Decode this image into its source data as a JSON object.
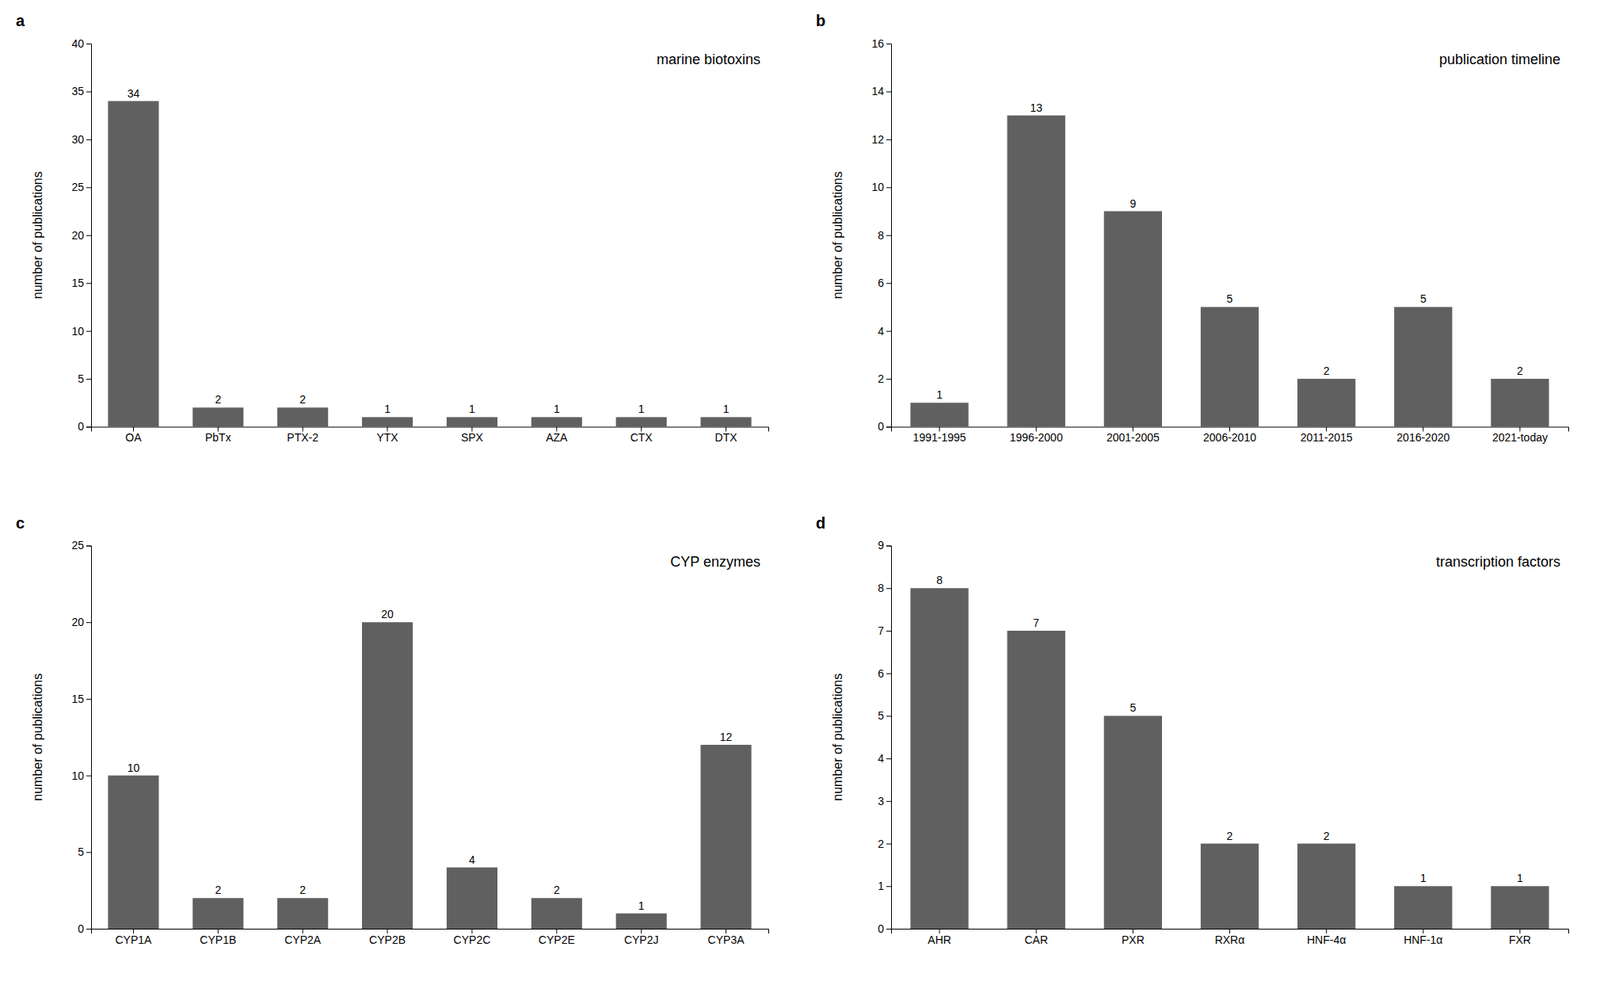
{
  "chart_data": [
    {
      "type": "bar",
      "title": "a",
      "annotation": "marine biotoxins",
      "categories": [
        "OA",
        "PbTx",
        "PTX-2",
        "YTX",
        "SPX",
        "AZA",
        "CTX",
        "DTX"
      ],
      "values": [
        34,
        2,
        2,
        1,
        1,
        1,
        1,
        1
      ],
      "color": "#606060",
      "ylim": [
        0,
        40
      ],
      "yticks": [
        0,
        5,
        10,
        15,
        20,
        25,
        30,
        35,
        40
      ],
      "ylabel": "number of publications",
      "grid": false,
      "data_labels": true
    },
    {
      "type": "bar",
      "title": "b",
      "annotation": "publication timeline",
      "categories": [
        "1991-1995",
        "1996-2000",
        "2001-2005",
        "2006-2010",
        "2011-2015",
        "2016-2020",
        "2021-today"
      ],
      "values": [
        1,
        13,
        9,
        5,
        2,
        5,
        2
      ],
      "color": "#606060",
      "ylim": [
        0,
        16
      ],
      "yticks": [
        0,
        2,
        4,
        6,
        8,
        10,
        12,
        14,
        16
      ],
      "ylabel": "number of publications",
      "grid": false,
      "data_labels": true
    },
    {
      "type": "bar",
      "title": "c",
      "annotation": "CYP enzymes",
      "categories": [
        "CYP1A",
        "CYP1B",
        "CYP2A",
        "CYP2B",
        "CYP2C",
        "CYP2E",
        "CYP2J",
        "CYP3A"
      ],
      "values": [
        10,
        2,
        2,
        20,
        4,
        2,
        1,
        12
      ],
      "color": "#606060",
      "ylim": [
        0,
        25
      ],
      "yticks": [
        0,
        5,
        10,
        15,
        20,
        25
      ],
      "ylabel": "number of publications",
      "grid": false,
      "data_labels": true
    },
    {
      "type": "bar",
      "title": "d",
      "annotation": "transcription factors",
      "categories": [
        "AHR",
        "CAR",
        "PXR",
        "RXRα",
        "HNF-4α",
        "HNF-1α",
        "FXR"
      ],
      "values": [
        8,
        7,
        5,
        2,
        2,
        1,
        1
      ],
      "color": "#606060",
      "ylim": [
        0,
        9
      ],
      "yticks": [
        0,
        1,
        2,
        3,
        4,
        5,
        6,
        7,
        8,
        9
      ],
      "ylabel": "number of publications",
      "grid": false,
      "data_labels": true
    }
  ]
}
